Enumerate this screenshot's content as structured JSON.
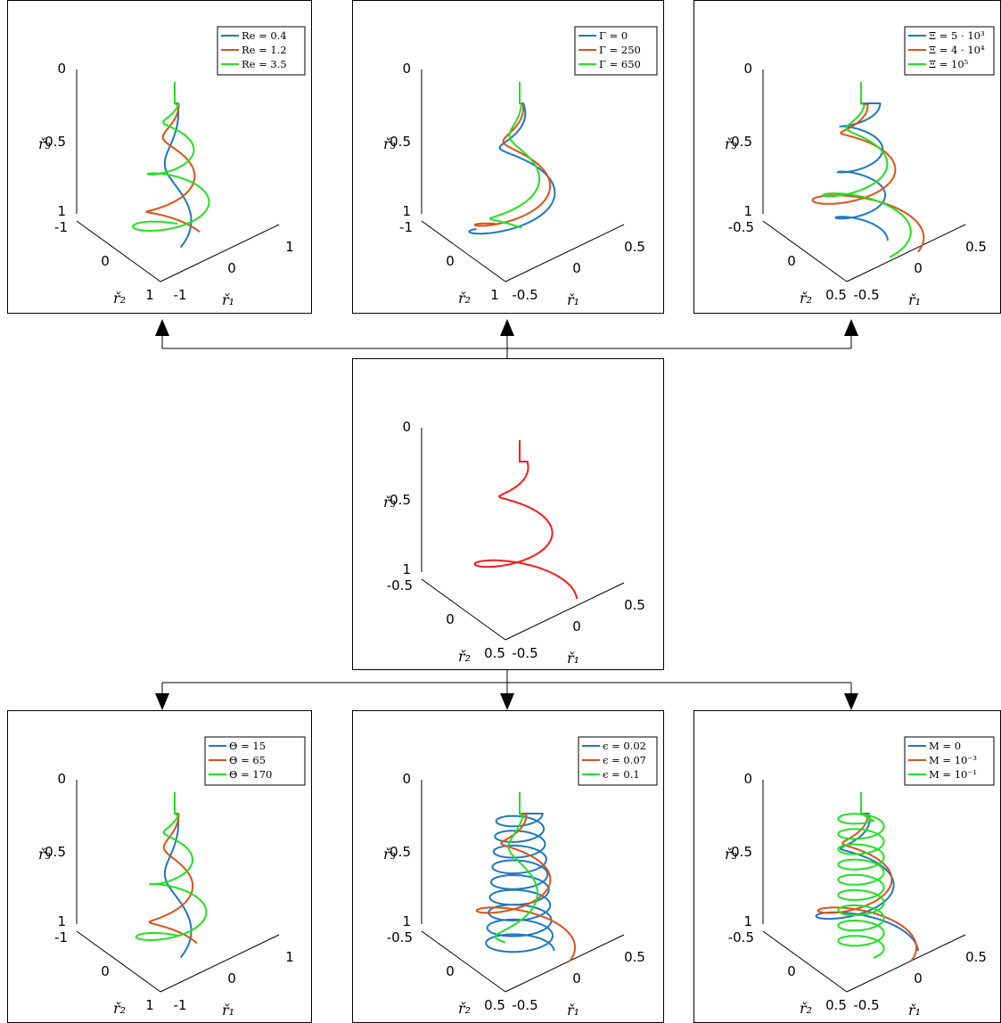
{
  "figure": {
    "axis_labels": {
      "r1": "ř₁",
      "r2": "ř₂",
      "r3": "ř₃"
    },
    "colors": {
      "series1": "#1f77c0",
      "series2": "#d95319",
      "series3": "#22e022",
      "base": "#ff1a1a",
      "frame": "#000000"
    }
  },
  "chart_data": [
    {
      "id": "re",
      "type": "line",
      "ticks": {
        "r1": [
          "-1",
          "0",
          "1"
        ],
        "r2": [
          "-1",
          "0",
          "1"
        ],
        "r3": [
          "0",
          "0.5",
          "1"
        ]
      },
      "xlim": [
        -1,
        1
      ],
      "ylim": [
        -1,
        1
      ],
      "zlim": [
        0,
        1
      ],
      "series": [
        {
          "name": "Re = 0.4",
          "radius_top": 0.04,
          "radius_bottom": 0.25,
          "turns": 1.2
        },
        {
          "name": "Re = 1.2",
          "radius_top": 0.06,
          "radius_bottom": 0.45,
          "turns": 1.8
        },
        {
          "name": "Re = 3.5",
          "radius_top": 0.08,
          "radius_bottom": 0.6,
          "turns": 2.6
        }
      ]
    },
    {
      "id": "gamma",
      "type": "line",
      "ticks": {
        "r1": [
          "-0.5",
          "0",
          "0.5"
        ],
        "r2": [
          "-1",
          "0",
          "1"
        ],
        "r3": [
          "0",
          "0.5",
          "1"
        ]
      },
      "xlim": [
        -0.5,
        0.5
      ],
      "ylim": [
        -1,
        1
      ],
      "zlim": [
        0,
        1
      ],
      "series": [
        {
          "name": "Γ = 0",
          "radius_top": 0.05,
          "radius_bottom": 0.7,
          "turns": 1.6
        },
        {
          "name": "Γ = 250",
          "radius_top": 0.05,
          "radius_bottom": 0.65,
          "turns": 1.6
        },
        {
          "name": "Γ = 650",
          "radius_top": 0.04,
          "radius_bottom": 0.45,
          "turns": 1.6
        }
      ]
    },
    {
      "id": "xi",
      "type": "line",
      "ticks": {
        "r1": [
          "-0.5",
          "0",
          "0.5"
        ],
        "r2": [
          "-0.5",
          "0",
          "0.5"
        ],
        "r3": [
          "0",
          "0.5",
          "1"
        ]
      },
      "xlim": [
        -0.5,
        0.5
      ],
      "ylim": [
        -0.5,
        0.5
      ],
      "zlim": [
        0,
        1
      ],
      "series": [
        {
          "name": "Ξ = 5 · 10³",
          "radius_top": 0.25,
          "radius_bottom": 0.35,
          "turns": 3.0
        },
        {
          "name": "Ξ = 4 · 10⁴",
          "radius_top": 0.1,
          "radius_bottom": 0.85,
          "turns": 2.0
        },
        {
          "name": "Ξ = 10⁵",
          "radius_top": 0.08,
          "radius_bottom": 0.7,
          "turns": 2.0
        }
      ]
    },
    {
      "id": "base",
      "type": "line",
      "ticks": {
        "r1": [
          "-0.5",
          "0",
          "0.5"
        ],
        "r2": [
          "-0.5",
          "0",
          "0.5"
        ],
        "r3": [
          "0",
          "0.5",
          "1"
        ]
      },
      "xlim": [
        -0.5,
        0.5
      ],
      "ylim": [
        -0.5,
        0.5
      ],
      "zlim": [
        0,
        1
      ],
      "series": [
        {
          "name": "",
          "radius_top": 0.1,
          "radius_bottom": 0.75,
          "turns": 2.0
        }
      ]
    },
    {
      "id": "theta",
      "type": "line",
      "ticks": {
        "r1": [
          "-1",
          "0",
          "1"
        ],
        "r2": [
          "-1",
          "0",
          "1"
        ],
        "r3": [
          "0",
          "0.5",
          "1"
        ]
      },
      "xlim": [
        -1,
        1
      ],
      "ylim": [
        -1,
        1
      ],
      "zlim": [
        0,
        1
      ],
      "series": [
        {
          "name": "Θ = 15",
          "radius_top": 0.04,
          "radius_bottom": 0.25,
          "turns": 1.2
        },
        {
          "name": "Θ = 65",
          "radius_top": 0.06,
          "radius_bottom": 0.4,
          "turns": 1.8
        },
        {
          "name": "Θ = 170",
          "radius_top": 0.08,
          "radius_bottom": 0.55,
          "turns": 2.6
        }
      ]
    },
    {
      "id": "eps",
      "type": "line",
      "ticks": {
        "r1": [
          "-0.5",
          "0",
          "0.5"
        ],
        "r2": [
          "-0.5",
          "0",
          "0.5"
        ],
        "r3": [
          "0",
          "0.5",
          "1"
        ]
      },
      "xlim": [
        -0.5,
        0.5
      ],
      "ylim": [
        -0.5,
        0.5
      ],
      "zlim": [
        0,
        1
      ],
      "series": [
        {
          "name": "ϵ = 0.02",
          "radius_top": 0.3,
          "radius_bottom": 0.45,
          "turns": 9.0
        },
        {
          "name": "ϵ = 0.07",
          "radius_top": 0.1,
          "radius_bottom": 0.75,
          "turns": 2.0
        },
        {
          "name": "ϵ = 0.1",
          "radius_top": 0.08,
          "radius_bottom": 0.35,
          "turns": 1.5
        }
      ]
    },
    {
      "id": "mag",
      "type": "line",
      "ticks": {
        "r1": [
          "-0.5",
          "0",
          "0.5"
        ],
        "r2": [
          "-0.5",
          "0",
          "0.5"
        ],
        "r3": [
          "0",
          "0.5",
          "1"
        ]
      },
      "xlim": [
        -0.5,
        0.5
      ],
      "ylim": [
        -0.5,
        0.5
      ],
      "zlim": [
        0,
        1
      ],
      "series": [
        {
          "name": "M = 0",
          "radius_top": 0.1,
          "radius_bottom": 0.75,
          "turns": 2.0
        },
        {
          "name": "M = 10⁻³",
          "radius_top": 0.1,
          "radius_bottom": 0.75,
          "turns": 2.0
        },
        {
          "name": "M = 10⁻¹",
          "radius_top": 0.3,
          "radius_bottom": 0.3,
          "turns": 9.0
        }
      ]
    }
  ]
}
